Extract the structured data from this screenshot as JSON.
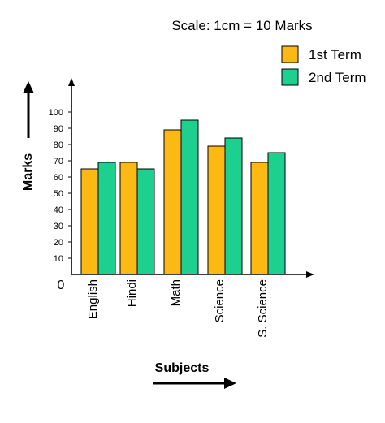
{
  "chart_data": {
    "type": "bar",
    "scale_note": "Scale: 1cm = 10 Marks",
    "xlabel": "Subjects",
    "ylabel": "Marks",
    "origin_label": "0",
    "categories": [
      "English",
      "Hindi",
      "Math",
      "Science",
      "S. Science"
    ],
    "series": [
      {
        "name": "1st Term",
        "color": "#FDB913",
        "values": [
          65,
          69,
          89,
          79,
          69
        ]
      },
      {
        "name": "2nd Term",
        "color": "#1DD08F",
        "values": [
          69,
          65,
          95,
          84,
          75
        ]
      }
    ],
    "yticks": [
      10,
      20,
      30,
      40,
      50,
      60,
      70,
      80,
      90,
      100
    ],
    "ylim": [
      0,
      105
    ],
    "grid": false,
    "legend_position": "top-right"
  }
}
